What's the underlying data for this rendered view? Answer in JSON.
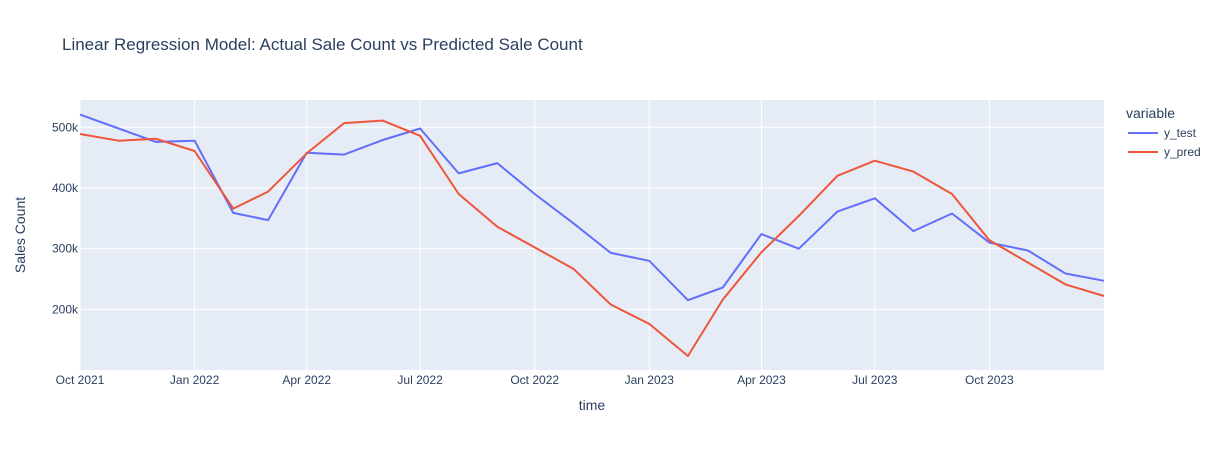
{
  "chart_data": {
    "type": "line",
    "title": "Linear Regression Model: Actual Sale Count vs Predicted Sale Count",
    "xlabel": "time",
    "ylabel": "Sales Count",
    "x": [
      "2021-10-01",
      "2021-11-01",
      "2021-12-01",
      "2022-01-01",
      "2022-02-01",
      "2022-03-01",
      "2022-04-01",
      "2022-05-01",
      "2022-06-01",
      "2022-07-01",
      "2022-08-01",
      "2022-09-01",
      "2022-10-01",
      "2022-11-01",
      "2022-12-01",
      "2023-01-01",
      "2023-02-01",
      "2023-03-01",
      "2023-04-01",
      "2023-05-01",
      "2023-06-01",
      "2023-07-01",
      "2023-08-01",
      "2023-09-01",
      "2023-10-01",
      "2023-11-01",
      "2023-12-01",
      "2024-01-01"
    ],
    "series": [
      {
        "name": "y_test",
        "color": "#636efa",
        "values": [
          521000,
          498000,
          476000,
          478000,
          359000,
          347000,
          458000,
          455000,
          479000,
          498000,
          424000,
          441000,
          390000,
          342000,
          293000,
          280000,
          215000,
          236000,
          324000,
          300000,
          361000,
          383000,
          329000,
          358000,
          310000,
          297000,
          259000,
          247000
        ]
      },
      {
        "name": "y_pred",
        "color": "#ef553b",
        "values": [
          489000,
          478000,
          481000,
          461000,
          366000,
          394000,
          457000,
          507000,
          511000,
          486000,
          390000,
          336000,
          302000,
          267000,
          208000,
          176000,
          123000,
          216000,
          294000,
          354000,
          420000,
          445000,
          427000,
          390000,
          314000,
          277000,
          241000,
          222000
        ]
      }
    ],
    "x_ticks": [
      {
        "date": "2021-10-01",
        "label": "Oct 2021"
      },
      {
        "date": "2022-01-01",
        "label": "Jan 2022"
      },
      {
        "date": "2022-04-01",
        "label": "Apr 2022"
      },
      {
        "date": "2022-07-01",
        "label": "Jul 2022"
      },
      {
        "date": "2022-10-01",
        "label": "Oct 2022"
      },
      {
        "date": "2023-01-01",
        "label": "Jan 2023"
      },
      {
        "date": "2023-04-01",
        "label": "Apr 2023"
      },
      {
        "date": "2023-07-01",
        "label": "Jul 2023"
      },
      {
        "date": "2023-10-01",
        "label": "Oct 2023"
      }
    ],
    "y_ticks": [
      {
        "value": 200000,
        "label": "200k"
      },
      {
        "value": 300000,
        "label": "300k"
      },
      {
        "value": 400000,
        "label": "400k"
      },
      {
        "value": 500000,
        "label": "500k"
      }
    ],
    "xlim": [
      "2021-10-01",
      "2024-01-01"
    ],
    "ylim": [
      100000,
      545000
    ],
    "legend": {
      "title": "variable",
      "placement": "right"
    },
    "grid": true,
    "colors": {
      "plot_bg": "#e5ecf6",
      "grid": "#ffffff",
      "text": "#2a3f5f"
    }
  }
}
